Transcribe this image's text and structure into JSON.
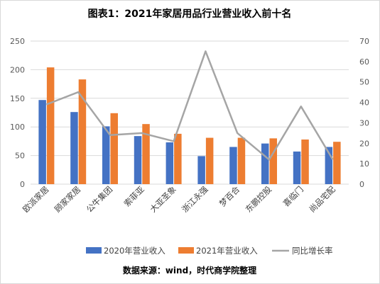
{
  "chart_data": {
    "type": "bar",
    "title": "图表1：2021年家居用品行业营业收入前十名",
    "categories": [
      "欧派家居",
      "顾家家居",
      "公牛集团",
      "索菲亚",
      "大亚圣象",
      "浙江永强",
      "梦百合",
      "东鹏控股",
      "喜临门",
      "尚品宅配"
    ],
    "series": [
      {
        "name": "2020年营业收入",
        "kind": "bar",
        "axis": "left",
        "color": "#4472c4",
        "values": [
          147,
          126,
          101,
          84,
          73,
          49,
          65,
          71,
          57,
          65
        ]
      },
      {
        "name": "2021年营业收入",
        "kind": "bar",
        "axis": "left",
        "color": "#ed7d31",
        "values": [
          204,
          183,
          124,
          105,
          88,
          81,
          81,
          80,
          78,
          74
        ]
      },
      {
        "name": "同比增长率",
        "kind": "line",
        "axis": "right",
        "color": "#a5a5a5",
        "values": [
          39,
          45,
          24,
          25,
          21,
          65,
          25,
          12,
          38,
          12
        ]
      }
    ],
    "y_left": {
      "min": 0,
      "max": 250,
      "ticks": [
        0,
        50,
        100,
        150,
        200,
        250
      ]
    },
    "y_right": {
      "min": 0,
      "max": 70,
      "ticks": [
        0,
        10,
        20,
        30,
        40,
        50,
        60,
        70
      ]
    },
    "grid": true,
    "legend_position": "bottom",
    "source": "数据来源：wind，时代商学院整理"
  }
}
